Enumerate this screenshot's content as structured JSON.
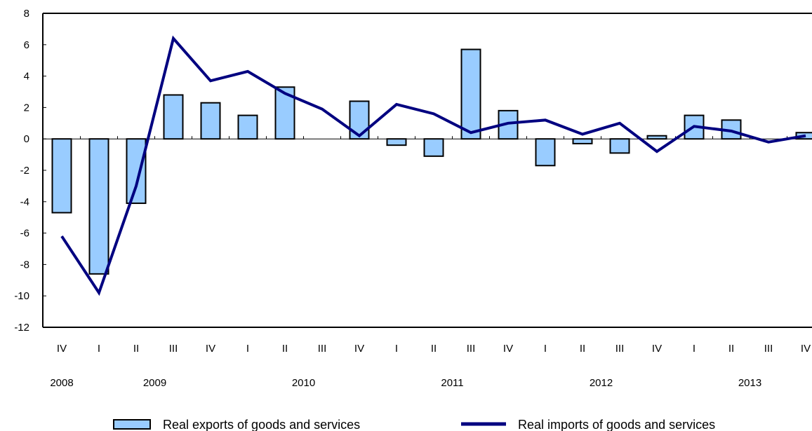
{
  "chart_data": {
    "type": "bar",
    "categories": [
      "IV",
      "I",
      "II",
      "III",
      "IV",
      "I",
      "II",
      "III",
      "IV",
      "I",
      "II",
      "III",
      "IV",
      "I",
      "II",
      "III",
      "IV",
      "I",
      "II",
      "III",
      "IV"
    ],
    "year_labels": [
      {
        "label": "2008",
        "index": 0
      },
      {
        "label": "2009",
        "index": 2.5
      },
      {
        "label": "2010",
        "index": 6.5
      },
      {
        "label": "2011",
        "index": 10.5
      },
      {
        "label": "2012",
        "index": 14.5
      },
      {
        "label": "2013",
        "index": 18.5
      }
    ],
    "ylim": [
      -12,
      8
    ],
    "yticks": [
      8,
      6,
      4,
      2,
      0,
      -2,
      -4,
      -6,
      -8,
      -10,
      -12
    ],
    "grid": false,
    "legend_position": "bottom",
    "series": [
      {
        "name": "Real exports of goods and services",
        "kind": "bar",
        "color": "#99CCFF",
        "values": [
          -4.7,
          -8.6,
          -4.1,
          2.8,
          2.3,
          1.5,
          3.3,
          0,
          2.4,
          -0.4,
          -1.1,
          5.7,
          1.8,
          -1.7,
          -0.3,
          -0.9,
          0.2,
          1.5,
          1.2,
          0,
          0.4
        ]
      },
      {
        "name": "Real imports of goods and services",
        "kind": "line",
        "color": "#000080",
        "values": [
          -6.2,
          -9.8,
          -3.0,
          6.4,
          3.7,
          4.3,
          2.9,
          1.9,
          0.2,
          2.2,
          1.6,
          0.4,
          1.0,
          1.2,
          0.3,
          1.0,
          -0.8,
          0.8,
          0.5,
          -0.2,
          0.2
        ]
      }
    ]
  }
}
